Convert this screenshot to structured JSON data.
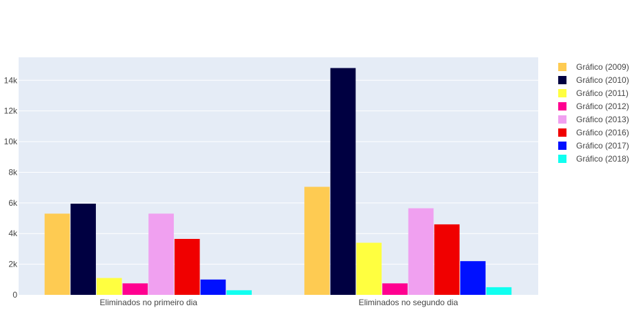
{
  "chart_data": {
    "type": "bar",
    "categories": [
      "Eliminados no primeiro dia",
      "Eliminados no segundo dia"
    ],
    "series": [
      {
        "name": "Gráfico (2009)",
        "color": "#FECB52",
        "values": [
          5300,
          7050
        ]
      },
      {
        "name": "Gráfico (2010)",
        "color": "#000041",
        "values": [
          5950,
          14800
        ]
      },
      {
        "name": "Gráfico (2011)",
        "color": "#FFFF40",
        "values": [
          1100,
          3400
        ]
      },
      {
        "name": "Gráfico (2012)",
        "color": "#FF0090",
        "values": [
          750,
          750
        ]
      },
      {
        "name": "Gráfico (2013)",
        "color": "#F0A0F0",
        "values": [
          5300,
          5650
        ]
      },
      {
        "name": "Gráfico (2016)",
        "color": "#F00000",
        "values": [
          3650,
          4600
        ]
      },
      {
        "name": "Gráfico (2017)",
        "color": "#0010FF",
        "values": [
          1000,
          2200
        ]
      },
      {
        "name": "Gráfico (2018)",
        "color": "#10FFF0",
        "values": [
          300,
          500
        ]
      }
    ],
    "ylim": [
      0,
      15500
    ],
    "yticks": [
      0,
      2000,
      4000,
      6000,
      8000,
      10000,
      12000,
      14000
    ],
    "ytick_labels": [
      "0",
      "2k",
      "4k",
      "6k",
      "8k",
      "10k",
      "12k",
      "14k"
    ],
    "grid": true,
    "legend_position": "right",
    "plot_background": "#E5ECF6"
  }
}
